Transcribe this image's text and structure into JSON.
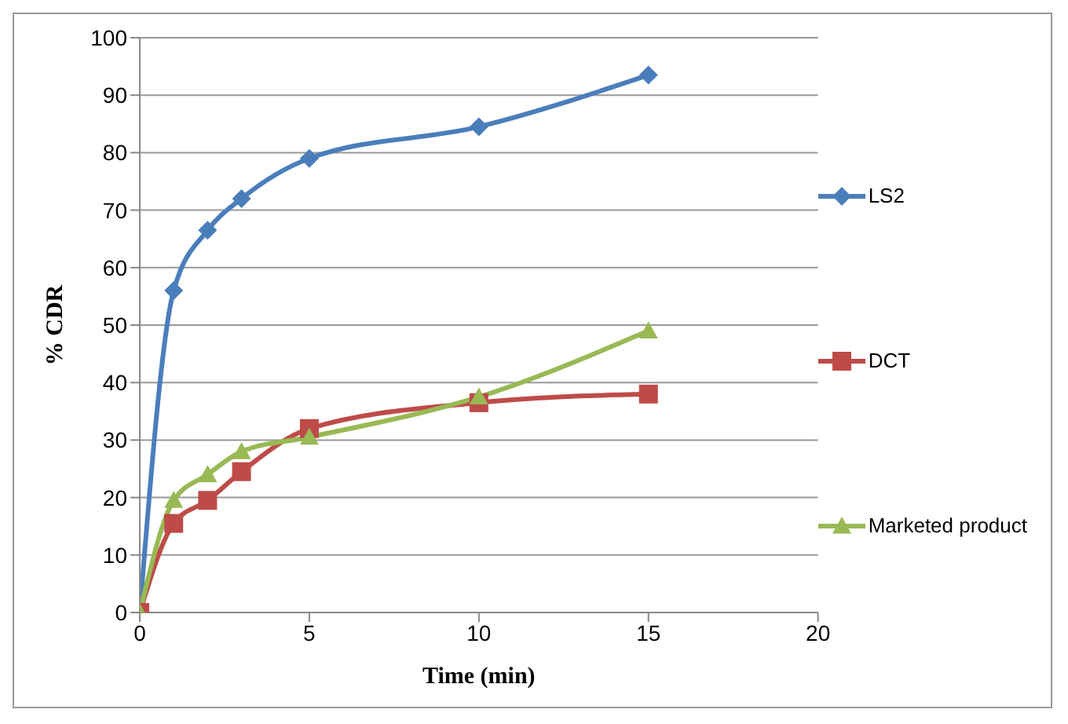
{
  "chart_data": {
    "type": "line",
    "xlabel": "Time (min)",
    "ylabel": "% CDR",
    "x": [
      0,
      1,
      2,
      3,
      5,
      10,
      15
    ],
    "series": [
      {
        "name": "LS2",
        "color": "#4a7ebb",
        "marker": "diamond",
        "values": [
          0,
          56,
          66.5,
          72,
          79,
          84.5,
          93.5
        ]
      },
      {
        "name": "DCT",
        "color": "#be4b48",
        "marker": "square",
        "values": [
          0,
          15.5,
          19.5,
          24.5,
          32,
          36.5,
          38
        ]
      },
      {
        "name": "Marketed product",
        "color": "#98b954",
        "marker": "triangle",
        "values": [
          0,
          19.5,
          24,
          28,
          30.5,
          37.5,
          49
        ]
      }
    ],
    "xlim": [
      0,
      20
    ],
    "xticks": [
      0,
      5,
      10,
      15,
      20
    ],
    "ylim": [
      0,
      100
    ],
    "yticks": [
      0,
      10,
      20,
      30,
      40,
      50,
      60,
      70,
      80,
      90,
      100
    ],
    "grid": "y",
    "legend": "right"
  }
}
